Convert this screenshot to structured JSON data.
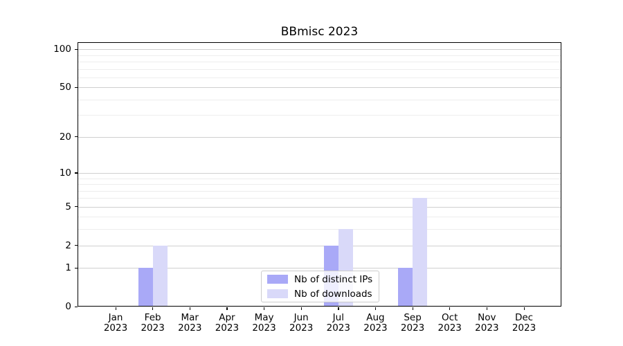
{
  "chart_data": {
    "type": "bar",
    "title": "BBmisc 2023",
    "categories": [
      "Jan\n2023",
      "Feb\n2023",
      "Mar\n2023",
      "Apr\n2023",
      "May\n2023",
      "Jun\n2023",
      "Jul\n2023",
      "Aug\n2023",
      "Sep\n2023",
      "Oct\n2023",
      "Nov\n2023",
      "Dec\n2023"
    ],
    "series": [
      {
        "name": "Nb of distinct IPs",
        "color": "#a9a9f7",
        "values": [
          0,
          1,
          0,
          0,
          0,
          0,
          2,
          0,
          1,
          0,
          0,
          0
        ]
      },
      {
        "name": "Nb of downloads",
        "color": "#d9d9f9",
        "values": [
          0,
          2,
          0,
          0,
          0,
          0,
          3,
          0,
          6,
          0,
          0,
          0
        ]
      }
    ],
    "xlabel": "",
    "ylabel": "",
    "y_axis": {
      "scale": "log1p",
      "tick_values": [
        0,
        1,
        2,
        5,
        10,
        20,
        50,
        100
      ],
      "tick_labels": [
        "0",
        "1",
        "2",
        "5",
        "10",
        "20",
        "50",
        "100"
      ],
      "minor_gridline_values": [
        3,
        4,
        6,
        7,
        8,
        9,
        30,
        40,
        60,
        70,
        80,
        90
      ],
      "ylim": [
        0,
        114
      ]
    },
    "grid": "horizontal",
    "legend": {
      "position": "inside-bottom-center"
    }
  }
}
